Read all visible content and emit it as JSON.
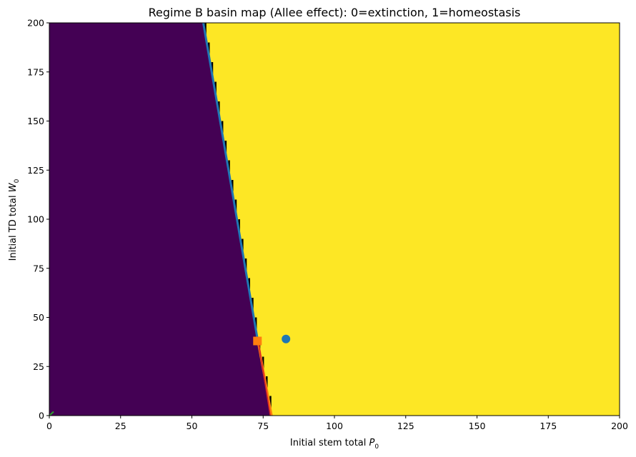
{
  "chart_data": {
    "type": "heatmap",
    "title": "Regime B basin map (Allee effect): 0=extinction, 1=homeostasis",
    "xlabel": "Initial stem total",
    "xlabel_symbol": "P",
    "xlabel_sub": "0",
    "ylabel": "Initial TD total",
    "ylabel_symbol": "W",
    "ylabel_sub": "0",
    "xlim": [
      0,
      200
    ],
    "ylim": [
      0,
      200
    ],
    "xticks": [
      0,
      25,
      50,
      75,
      100,
      125,
      150,
      175,
      200
    ],
    "yticks": [
      0,
      25,
      50,
      75,
      100,
      125,
      150,
      175,
      200
    ],
    "grid": false,
    "regions": [
      {
        "name": "extinction",
        "value": 0,
        "color": "#440154"
      },
      {
        "name": "homeostasis",
        "value": 1,
        "color": "#fde725"
      }
    ],
    "separatrix_upper": {
      "color": "#1f77b4",
      "points": [
        [
          54,
          200
        ],
        [
          73,
          39
        ]
      ]
    },
    "separatrix_lower": {
      "color": "#ff7f0e",
      "points": [
        [
          73,
          39
        ],
        [
          78,
          0
        ]
      ]
    },
    "separatrix_lower_inner": {
      "color": "#d62728",
      "points": [
        [
          73.5,
          36
        ],
        [
          77.5,
          0
        ]
      ]
    },
    "saddle_point": {
      "color": "#ff7f0e",
      "marker": "square",
      "x": 73,
      "y": 38
    },
    "stable_point": {
      "color": "#1f77b4",
      "marker": "circle",
      "x": 83,
      "y": 39
    },
    "origin_marker": {
      "color": "#2ca02c",
      "points": [
        [
          0,
          0
        ],
        [
          1.5,
          2
        ]
      ]
    }
  }
}
